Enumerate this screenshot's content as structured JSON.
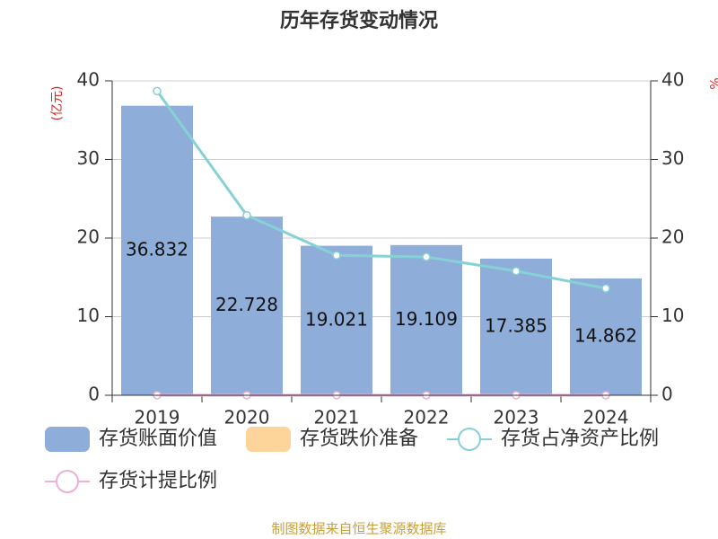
{
  "chart_data": {
    "type": "bar",
    "title": "历年存货变动情况",
    "y_label": "(亿元)",
    "y2_label": "%",
    "source": "制图数据来自恒生聚源数据库",
    "categories": [
      "2019",
      "2020",
      "2021",
      "2022",
      "2023",
      "2024"
    ],
    "series": [
      {
        "name": "存货账面价值",
        "type": "bar",
        "color": "#8eadd9",
        "values": [
          36.832,
          22.728,
          19.021,
          19.109,
          17.385,
          14.862
        ]
      },
      {
        "name": "存货跌价准备",
        "type": "bar",
        "color": "#fdd49a",
        "values": [
          0,
          0,
          0,
          0,
          0,
          0
        ]
      },
      {
        "name": "存货占净资产比例",
        "type": "line",
        "axis": "y2",
        "color": "#86d1d6",
        "values": [
          38.7,
          22.9,
          17.8,
          17.6,
          15.8,
          13.6
        ]
      },
      {
        "name": "存货计提比例",
        "type": "line",
        "axis": "y2",
        "color": "#e9b1d6",
        "values": [
          0,
          0,
          0,
          0,
          0,
          0
        ]
      }
    ],
    "ylim": [
      0,
      40
    ],
    "yticks": [
      0,
      10,
      20,
      30,
      40
    ],
    "y2lim": [
      0,
      40
    ],
    "y2ticks": [
      0,
      10,
      20,
      30,
      40
    ],
    "grid": true
  }
}
